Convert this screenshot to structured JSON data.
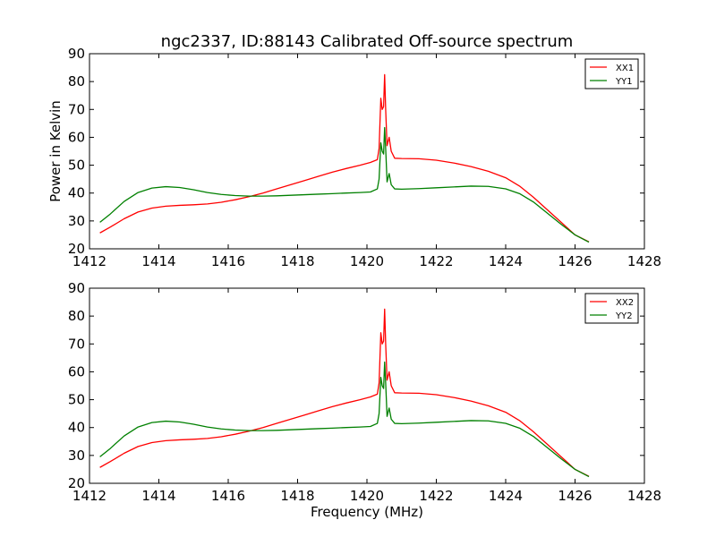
{
  "chart_data": [
    {
      "type": "line",
      "title": "ngc2337, ID:88143 Calibrated Off-source spectrum",
      "xlabel": "",
      "ylabel": "Power in Kelvin",
      "xlim": [
        1412,
        1428
      ],
      "ylim": [
        20,
        90
      ],
      "xticks": [
        "1412",
        "1414",
        "1416",
        "1418",
        "1420",
        "1422",
        "1424",
        "1426",
        "1428"
      ],
      "yticks": [
        "20",
        "30",
        "40",
        "50",
        "60",
        "70",
        "80",
        "90"
      ],
      "grid": false,
      "legend_position": "top-right",
      "series": [
        {
          "name": "XX1",
          "color": "#ff0000",
          "points": [
            [
              1412.3,
              25.7
            ],
            [
              1412.6,
              27.8
            ],
            [
              1413.0,
              30.8
            ],
            [
              1413.4,
              33.2
            ],
            [
              1413.8,
              34.6
            ],
            [
              1414.2,
              35.3
            ],
            [
              1414.6,
              35.6
            ],
            [
              1415.0,
              35.8
            ],
            [
              1415.4,
              36.1
            ],
            [
              1415.8,
              36.7
            ],
            [
              1416.2,
              37.6
            ],
            [
              1416.6,
              38.7
            ],
            [
              1417.0,
              40.0
            ],
            [
              1417.4,
              41.5
            ],
            [
              1417.8,
              43.0
            ],
            [
              1418.2,
              44.5
            ],
            [
              1418.6,
              46.0
            ],
            [
              1419.0,
              47.5
            ],
            [
              1419.4,
              48.8
            ],
            [
              1419.8,
              50.0
            ],
            [
              1420.1,
              51.0
            ],
            [
              1420.3,
              52.0
            ],
            [
              1420.35,
              56.0
            ],
            [
              1420.4,
              74.0
            ],
            [
              1420.44,
              70.0
            ],
            [
              1420.48,
              71.0
            ],
            [
              1420.51,
              82.5
            ],
            [
              1420.54,
              70.0
            ],
            [
              1420.58,
              57.0
            ],
            [
              1420.64,
              60.0
            ],
            [
              1420.7,
              55.0
            ],
            [
              1420.8,
              52.5
            ],
            [
              1421.0,
              52.4
            ],
            [
              1421.5,
              52.3
            ],
            [
              1422.0,
              51.8
            ],
            [
              1422.5,
              50.8
            ],
            [
              1423.0,
              49.5
            ],
            [
              1423.5,
              47.8
            ],
            [
              1424.0,
              45.5
            ],
            [
              1424.4,
              42.5
            ],
            [
              1424.8,
              38.5
            ],
            [
              1425.2,
              34.0
            ],
            [
              1425.6,
              29.5
            ],
            [
              1426.0,
              25.0
            ],
            [
              1426.4,
              22.5
            ]
          ]
        },
        {
          "name": "YY1",
          "color": "#008000",
          "points": [
            [
              1412.3,
              29.5
            ],
            [
              1412.6,
              32.5
            ],
            [
              1413.0,
              37.0
            ],
            [
              1413.4,
              40.2
            ],
            [
              1413.8,
              41.8
            ],
            [
              1414.2,
              42.3
            ],
            [
              1414.6,
              42.0
            ],
            [
              1415.0,
              41.2
            ],
            [
              1415.4,
              40.2
            ],
            [
              1415.8,
              39.5
            ],
            [
              1416.2,
              39.1
            ],
            [
              1416.6,
              38.9
            ],
            [
              1417.0,
              38.9
            ],
            [
              1417.4,
              39.0
            ],
            [
              1417.8,
              39.2
            ],
            [
              1418.2,
              39.4
            ],
            [
              1418.6,
              39.6
            ],
            [
              1419.0,
              39.8
            ],
            [
              1419.4,
              40.0
            ],
            [
              1419.8,
              40.2
            ],
            [
              1420.1,
              40.4
            ],
            [
              1420.3,
              41.5
            ],
            [
              1420.35,
              45.0
            ],
            [
              1420.4,
              58.0
            ],
            [
              1420.44,
              55.0
            ],
            [
              1420.48,
              54.0
            ],
            [
              1420.51,
              63.5
            ],
            [
              1420.54,
              56.0
            ],
            [
              1420.58,
              44.0
            ],
            [
              1420.64,
              47.0
            ],
            [
              1420.7,
              43.0
            ],
            [
              1420.8,
              41.5
            ],
            [
              1421.0,
              41.4
            ],
            [
              1421.5,
              41.6
            ],
            [
              1422.0,
              41.9
            ],
            [
              1422.5,
              42.2
            ],
            [
              1423.0,
              42.5
            ],
            [
              1423.5,
              42.4
            ],
            [
              1424.0,
              41.5
            ],
            [
              1424.4,
              39.8
            ],
            [
              1424.8,
              36.8
            ],
            [
              1425.2,
              32.8
            ],
            [
              1425.6,
              28.8
            ],
            [
              1426.0,
              25.0
            ],
            [
              1426.4,
              22.4
            ]
          ]
        }
      ]
    },
    {
      "type": "line",
      "title": "",
      "xlabel": "Frequency (MHz)",
      "ylabel": "",
      "xlim": [
        1412,
        1428
      ],
      "ylim": [
        20,
        90
      ],
      "xticks": [
        "1412",
        "1414",
        "1416",
        "1418",
        "1420",
        "1422",
        "1424",
        "1426",
        "1428"
      ],
      "yticks": [
        "20",
        "30",
        "40",
        "50",
        "60",
        "70",
        "80",
        "90"
      ],
      "grid": false,
      "legend_position": "top-right",
      "series": [
        {
          "name": "XX2",
          "color": "#ff0000",
          "points": [
            [
              1412.3,
              25.7
            ],
            [
              1412.6,
              27.8
            ],
            [
              1413.0,
              30.8
            ],
            [
              1413.4,
              33.2
            ],
            [
              1413.8,
              34.6
            ],
            [
              1414.2,
              35.3
            ],
            [
              1414.6,
              35.6
            ],
            [
              1415.0,
              35.8
            ],
            [
              1415.4,
              36.1
            ],
            [
              1415.8,
              36.7
            ],
            [
              1416.2,
              37.6
            ],
            [
              1416.6,
              38.7
            ],
            [
              1417.0,
              40.0
            ],
            [
              1417.4,
              41.5
            ],
            [
              1417.8,
              43.0
            ],
            [
              1418.2,
              44.5
            ],
            [
              1418.6,
              46.0
            ],
            [
              1419.0,
              47.5
            ],
            [
              1419.4,
              48.8
            ],
            [
              1419.8,
              50.0
            ],
            [
              1420.1,
              51.0
            ],
            [
              1420.3,
              52.0
            ],
            [
              1420.35,
              56.0
            ],
            [
              1420.4,
              74.0
            ],
            [
              1420.44,
              70.0
            ],
            [
              1420.48,
              71.0
            ],
            [
              1420.51,
              82.5
            ],
            [
              1420.54,
              70.0
            ],
            [
              1420.58,
              57.0
            ],
            [
              1420.64,
              60.0
            ],
            [
              1420.7,
              55.0
            ],
            [
              1420.8,
              52.5
            ],
            [
              1421.0,
              52.4
            ],
            [
              1421.5,
              52.3
            ],
            [
              1422.0,
              51.8
            ],
            [
              1422.5,
              50.8
            ],
            [
              1423.0,
              49.5
            ],
            [
              1423.5,
              47.8
            ],
            [
              1424.0,
              45.5
            ],
            [
              1424.4,
              42.5
            ],
            [
              1424.8,
              38.5
            ],
            [
              1425.2,
              34.0
            ],
            [
              1425.6,
              29.5
            ],
            [
              1426.0,
              25.0
            ],
            [
              1426.4,
              22.5
            ]
          ]
        },
        {
          "name": "YY2",
          "color": "#008000",
          "points": [
            [
              1412.3,
              29.5
            ],
            [
              1412.6,
              32.5
            ],
            [
              1413.0,
              37.0
            ],
            [
              1413.4,
              40.2
            ],
            [
              1413.8,
              41.8
            ],
            [
              1414.2,
              42.3
            ],
            [
              1414.6,
              42.0
            ],
            [
              1415.0,
              41.2
            ],
            [
              1415.4,
              40.2
            ],
            [
              1415.8,
              39.5
            ],
            [
              1416.2,
              39.1
            ],
            [
              1416.6,
              38.9
            ],
            [
              1417.0,
              38.9
            ],
            [
              1417.4,
              39.0
            ],
            [
              1417.8,
              39.2
            ],
            [
              1418.2,
              39.4
            ],
            [
              1418.6,
              39.6
            ],
            [
              1419.0,
              39.8
            ],
            [
              1419.4,
              40.0
            ],
            [
              1419.8,
              40.2
            ],
            [
              1420.1,
              40.4
            ],
            [
              1420.3,
              41.5
            ],
            [
              1420.35,
              45.0
            ],
            [
              1420.4,
              58.0
            ],
            [
              1420.44,
              55.0
            ],
            [
              1420.48,
              54.0
            ],
            [
              1420.51,
              63.5
            ],
            [
              1420.54,
              56.0
            ],
            [
              1420.58,
              44.0
            ],
            [
              1420.64,
              47.0
            ],
            [
              1420.7,
              43.0
            ],
            [
              1420.8,
              41.5
            ],
            [
              1421.0,
              41.4
            ],
            [
              1421.5,
              41.6
            ],
            [
              1422.0,
              41.9
            ],
            [
              1422.5,
              42.2
            ],
            [
              1423.0,
              42.5
            ],
            [
              1423.5,
              42.4
            ],
            [
              1424.0,
              41.5
            ],
            [
              1424.4,
              39.8
            ],
            [
              1424.8,
              36.8
            ],
            [
              1425.2,
              32.8
            ],
            [
              1425.6,
              28.8
            ],
            [
              1426.0,
              25.0
            ],
            [
              1426.4,
              22.4
            ]
          ]
        }
      ]
    }
  ]
}
